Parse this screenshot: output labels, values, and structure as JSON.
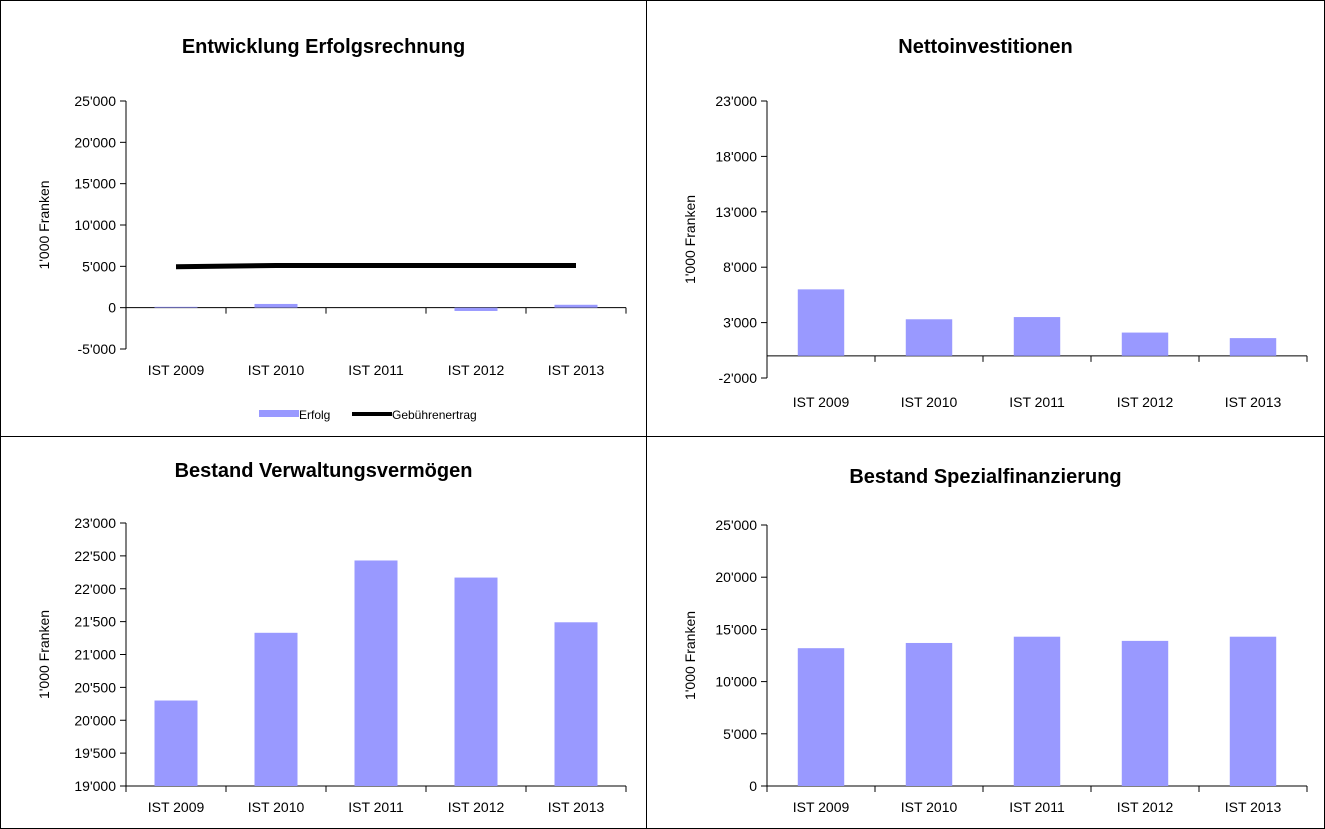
{
  "chart_data": [
    {
      "type": "bar",
      "title": "Entwicklung Erfolgsrechnung",
      "ylabel": "1'000 Franken",
      "ylim": [
        -5000,
        25000
      ],
      "yticks": [
        "-5'000",
        "0",
        "5'000",
        "10'000",
        "15'000",
        "20'000",
        "25'000"
      ],
      "ytick_values": [
        -5000,
        0,
        5000,
        10000,
        15000,
        20000,
        25000
      ],
      "categories": [
        "IST 2009",
        "IST 2010",
        "IST 2011",
        "IST 2012",
        "IST 2013"
      ],
      "series": [
        {
          "name": "Erfolg",
          "kind": "bar",
          "values": [
            100,
            450,
            0,
            -400,
            350
          ],
          "color": "#9999ff"
        },
        {
          "name": "Gebührenertrag",
          "kind": "line",
          "values": [
            4950,
            5100,
            5100,
            5100,
            5100
          ],
          "color": "#000000"
        }
      ],
      "legend": "bottom",
      "grid": false
    },
    {
      "type": "bar",
      "title": "Nettoinvestitionen",
      "ylabel": "1'000 Franken",
      "ylim": [
        -2000,
        23000
      ],
      "yticks": [
        "-2'000",
        "3'000",
        "8'000",
        "13'000",
        "18'000",
        "23'000"
      ],
      "ytick_values": [
        -2000,
        3000,
        8000,
        13000,
        18000,
        23000
      ],
      "categories": [
        "IST 2009",
        "IST 2010",
        "IST 2011",
        "IST 2012",
        "IST 2013"
      ],
      "series": [
        {
          "kind": "bar",
          "values": [
            6000,
            3300,
            3500,
            2100,
            1600
          ],
          "color": "#9999ff"
        }
      ],
      "grid": false
    },
    {
      "type": "bar",
      "title": "Bestand Verwaltungsvermögen",
      "ylabel": "1'000 Franken",
      "ylim": [
        19000,
        23000
      ],
      "yticks": [
        "19'000",
        "19'500",
        "20'000",
        "20'500",
        "21'000",
        "21'500",
        "22'000",
        "22'500",
        "23'000"
      ],
      "ytick_values": [
        19000,
        19500,
        20000,
        20500,
        21000,
        21500,
        22000,
        22500,
        23000
      ],
      "categories": [
        "IST 2009",
        "IST 2010",
        "IST 2011",
        "IST 2012",
        "IST 2013"
      ],
      "series": [
        {
          "kind": "bar",
          "values": [
            20300,
            21330,
            22430,
            22170,
            21490
          ],
          "color": "#9999ff"
        }
      ],
      "grid": false
    },
    {
      "type": "bar",
      "title": "Bestand Spezialfinanzierung",
      "ylabel": "1'000 Franken",
      "ylim": [
        0,
        25000
      ],
      "yticks": [
        "0",
        "5'000",
        "10'000",
        "15'000",
        "20'000",
        "25'000"
      ],
      "ytick_values": [
        0,
        5000,
        10000,
        15000,
        20000,
        25000
      ],
      "categories": [
        "IST 2009",
        "IST 2010",
        "IST 2011",
        "IST 2012",
        "IST 2013"
      ],
      "series": [
        {
          "kind": "bar",
          "values": [
            13200,
            13700,
            14300,
            13900,
            14300
          ],
          "color": "#9999ff"
        }
      ],
      "grid": false
    }
  ]
}
